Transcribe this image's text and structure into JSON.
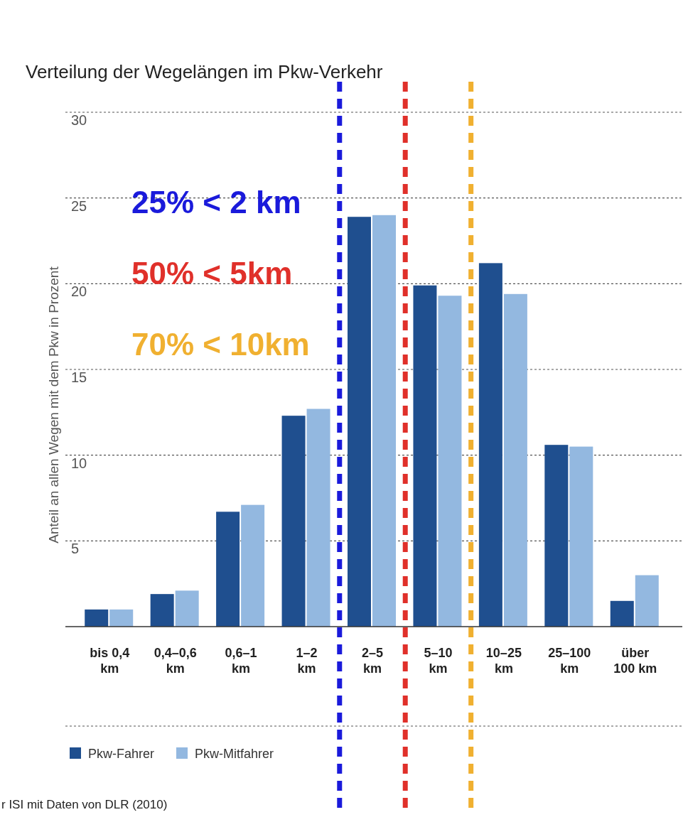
{
  "chart_data": {
    "type": "bar",
    "title": "Verteilung der Wegelängen im Pkw-Verkehr",
    "ylabel": "Anteil an allen Wegen mit dem Pkw in Prozent",
    "categories": [
      "bis 0,4\nkm",
      "0,4–0,6\nkm",
      "0,6–1\nkm",
      "1–2\nkm",
      "2–5\nkm",
      "5–10\nkm",
      "10–25\nkm",
      "25–100\nkm",
      "über\n100 km"
    ],
    "series": [
      {
        "name": "Pkw-Fahrer",
        "color": "#1f4f8f",
        "values": [
          1.0,
          1.9,
          6.7,
          12.3,
          23.9,
          19.9,
          21.2,
          10.6,
          1.5
        ]
      },
      {
        "name": "Pkw-Mitfahrer",
        "color": "#93b8e0",
        "values": [
          1.0,
          2.1,
          7.1,
          12.7,
          24.0,
          19.3,
          19.4,
          10.5,
          3.0
        ]
      }
    ],
    "ylim": [
      0,
      30
    ],
    "yticks": [
      5,
      10,
      15,
      20,
      25,
      30
    ],
    "grid": "y",
    "legend": "bottom left",
    "ref_lines": [
      {
        "axis": "x",
        "value": "2–5\nkm",
        "label": "25% < 2 km",
        "color": "#1a1adb",
        "line_style": "dashed"
      },
      {
        "axis": "x",
        "value": "5–10\nkm",
        "label": "50% < 5km",
        "color": "#e0302a",
        "line_style": "dashed"
      },
      {
        "axis": "x",
        "value": "10–25\nkm",
        "label": "70% < 10km",
        "color": "#f0b030",
        "line_style": "dashed"
      }
    ],
    "annotations": [
      "r ISI mit Daten von DLR (2010)"
    ]
  }
}
